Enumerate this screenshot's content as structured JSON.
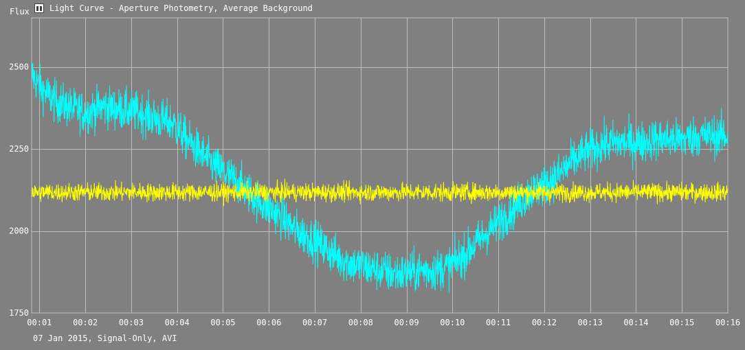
{
  "window": {
    "title": "Light Curve - Aperture Photometry, Average Background",
    "icon": "light-curve-app-icon"
  },
  "footer": {
    "caption": "07 Jan 2015, Signal-Only, AVI"
  },
  "colors": {
    "background": "#808080",
    "grid": "#c0c0c0",
    "target_series": "#00ffff",
    "comparison_series": "#ffff00",
    "text": "#ffffff"
  },
  "chart_data": {
    "type": "line",
    "title": "Light Curve - Aperture Photometry, Average Background",
    "xlabel": "",
    "ylabel": "Flux",
    "grid": true,
    "legend": "none",
    "xlim": [
      0.83,
      16.0
    ],
    "ylim": [
      1750,
      2650
    ],
    "x_ticks": [
      1,
      2,
      3,
      4,
      5,
      6,
      7,
      8,
      9,
      10,
      11,
      12,
      13,
      14,
      15,
      16
    ],
    "x_tick_labels": [
      "00:01",
      "00:02",
      "00:03",
      "00:04",
      "00:05",
      "00:06",
      "00:07",
      "00:08",
      "00:09",
      "00:10",
      "00:11",
      "00:12",
      "00:13",
      "00:14",
      "00:15",
      "00:16"
    ],
    "y_ticks": [
      1750,
      2000,
      2250,
      2500
    ],
    "y_tick_labels": [
      "1750",
      "2000",
      "2250",
      "2500"
    ],
    "series": [
      {
        "color": "#00ffff",
        "noise": 45,
        "x": [
          0.83,
          1.0,
          1.3,
          1.6,
          2.0,
          2.4,
          2.8,
          3.2,
          3.6,
          3.9,
          4.2,
          4.5,
          4.8,
          5.1,
          5.4,
          5.7,
          6.0,
          6.3,
          6.6,
          6.9,
          7.2,
          7.5,
          7.8,
          8.1,
          8.4,
          8.7,
          9.0,
          9.3,
          9.6,
          9.9,
          10.2,
          10.5,
          10.8,
          11.1,
          11.4,
          11.7,
          12.0,
          12.3,
          12.6,
          12.9,
          13.2,
          13.5,
          13.8,
          14.1,
          14.4,
          14.7,
          15.0,
          15.3,
          15.6,
          16.0
        ],
        "y": [
          2480,
          2440,
          2400,
          2380,
          2360,
          2380,
          2370,
          2360,
          2340,
          2330,
          2280,
          2240,
          2200,
          2170,
          2140,
          2100,
          2070,
          2040,
          2000,
          1980,
          1950,
          1920,
          1900,
          1890,
          1880,
          1870,
          1870,
          1880,
          1880,
          1890,
          1920,
          1960,
          2000,
          2040,
          2080,
          2120,
          2140,
          2170,
          2210,
          2240,
          2260,
          2270,
          2270,
          2270,
          2280,
          2280,
          2280,
          2290,
          2290,
          2290
        ]
      },
      {
        "color": "#ffff00",
        "noise": 20,
        "x": [
          0.83,
          4.0,
          8.0,
          12.0,
          16.0
        ],
        "y": [
          2118,
          2118,
          2118,
          2118,
          2118
        ]
      }
    ]
  }
}
